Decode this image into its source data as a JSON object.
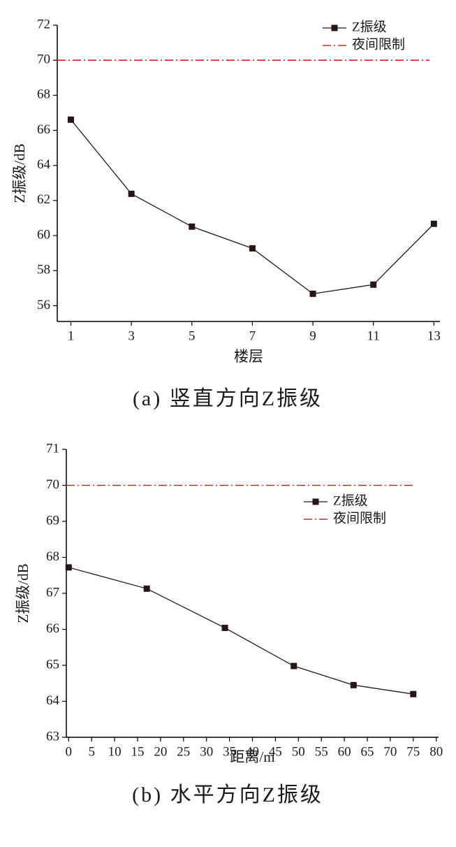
{
  "chart_data": [
    {
      "type": "line",
      "title": "(a) 竖直方向Z振级",
      "x_label": "楼层",
      "y_label": "Z振级/dB",
      "x": [
        1,
        3,
        5,
        7,
        9,
        11,
        13
      ],
      "series": [
        {
          "name": "Z振级",
          "color": "#231815",
          "values": [
            66.61,
            62.38,
            60.51,
            59.27,
            56.68,
            57.2,
            60.67
          ]
        }
      ],
      "reference_lines": [
        {
          "name": "夜间限制",
          "value": 70,
          "color": "#e0201b",
          "style": "dashdot"
        }
      ],
      "xlim": [
        0.55,
        13.2
      ],
      "xticks": [
        1,
        3,
        5,
        7,
        9,
        11,
        13
      ],
      "ylim": [
        55.1,
        72
      ],
      "yticks": [
        56,
        58,
        60,
        62,
        64,
        66,
        68,
        70,
        72
      ],
      "legend": "upper right"
    },
    {
      "type": "line",
      "title": "(b) 水平方向Z振级",
      "x_label": "距离/m",
      "y_label": "Z振级/dB",
      "x": [
        0,
        17,
        34,
        49,
        62,
        75
      ],
      "series": [
        {
          "name": "Z振级",
          "color": "#231815",
          "values": [
            67.72,
            67.13,
            66.04,
            64.98,
            64.45,
            64.2
          ]
        }
      ],
      "reference_lines": [
        {
          "name": "夜间限制",
          "value": 70,
          "color": "#e0201b",
          "style": "dashdot"
        }
      ],
      "xlim": [
        -0.5,
        80.5
      ],
      "xticks": [
        0,
        5,
        10,
        15,
        20,
        25,
        30,
        35,
        40,
        45,
        50,
        55,
        60,
        65,
        70,
        75,
        80
      ],
      "ylim": [
        63,
        71
      ],
      "yticks": [
        63,
        64,
        65,
        66,
        67,
        68,
        69,
        70,
        71
      ],
      "legend": "upper right"
    }
  ]
}
